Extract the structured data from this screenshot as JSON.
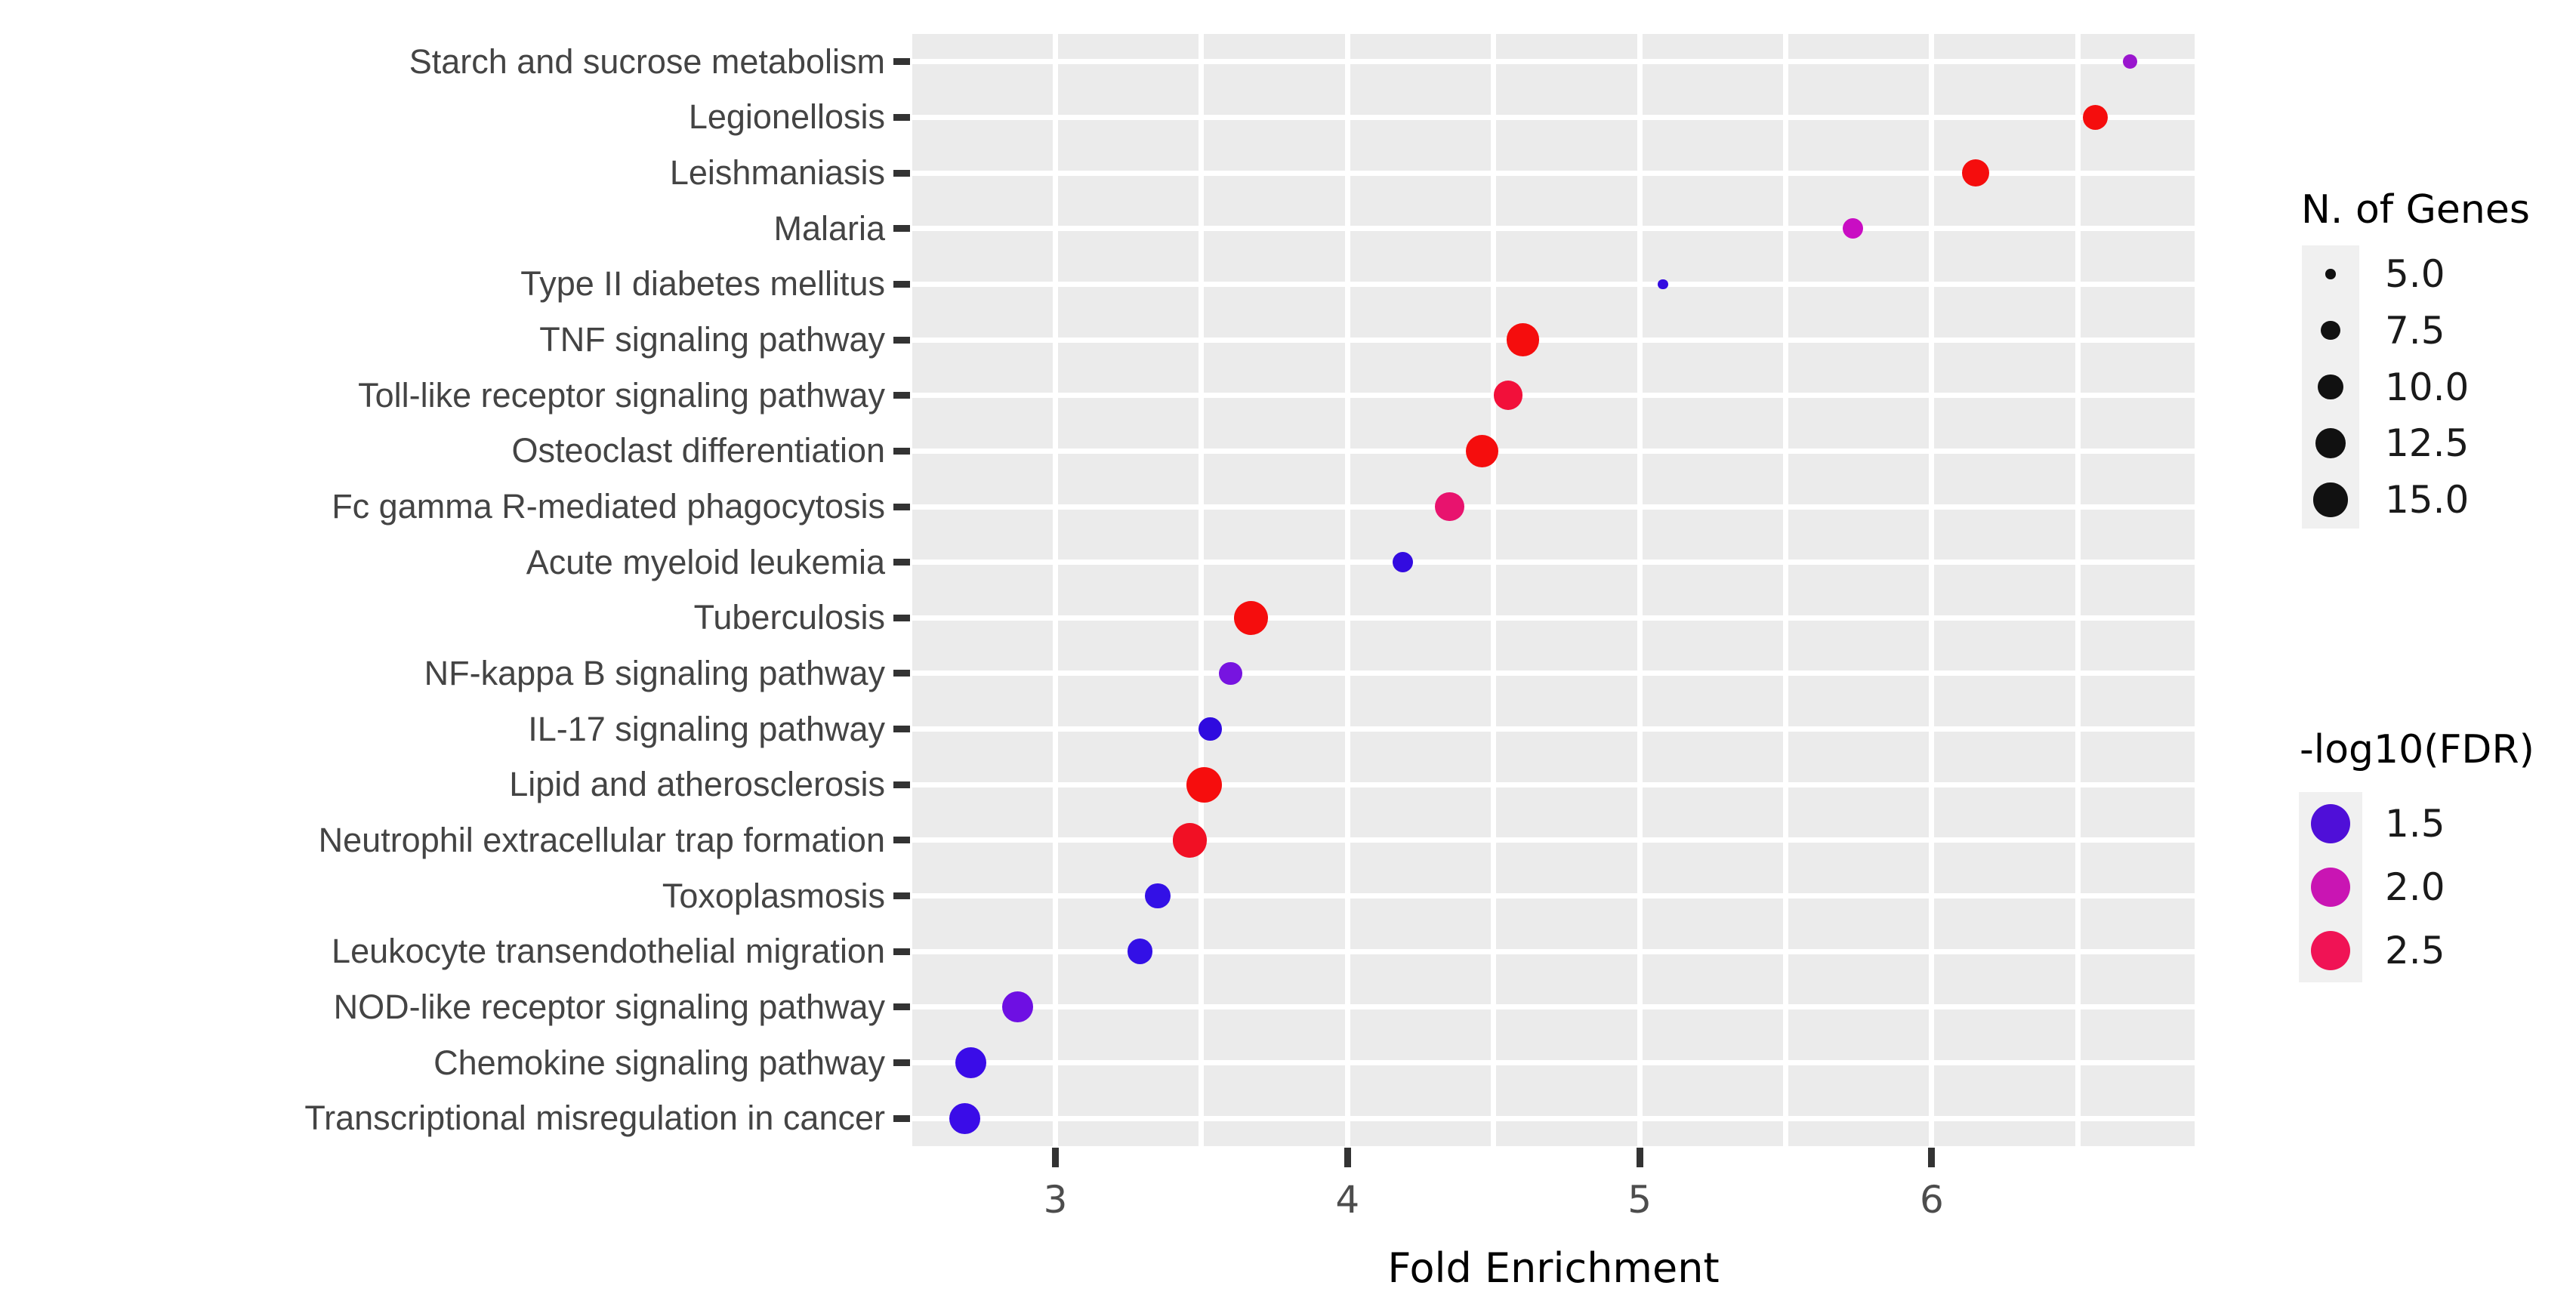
{
  "chart_data": {
    "type": "scatter",
    "title": "",
    "xlabel": "Fold Enrichment",
    "x_ticks": [
      "3",
      "4",
      "5",
      "6"
    ],
    "x_tick_values": [
      3,
      4,
      5,
      6
    ],
    "x_range": [
      2.51,
      6.9
    ],
    "grid": true,
    "panel_bg": "#EBEBEB",
    "grid_color": "#FFFFFF",
    "axis_text_color": "#4D4D4D",
    "points": [
      {
        "label": "Starch and sucrose metabolism",
        "fold_enrichment": 6.68,
        "n_genes": 6,
        "neg_log10_fdr": 1.9,
        "color": "#9A16CE"
      },
      {
        "label": "Legionellosis",
        "fold_enrichment": 6.56,
        "n_genes": 10,
        "neg_log10_fdr": 2.8,
        "color": "#F50D0D"
      },
      {
        "label": "Leishmaniasis",
        "fold_enrichment": 6.15,
        "n_genes": 11,
        "neg_log10_fdr": 2.8,
        "color": "#F50D0D"
      },
      {
        "label": "Malaria",
        "fold_enrichment": 5.73,
        "n_genes": 8,
        "neg_log10_fdr": 2.1,
        "color": "#C90DC3"
      },
      {
        "label": "Type II diabetes mellitus",
        "fold_enrichment": 5.08,
        "n_genes": 5,
        "neg_log10_fdr": 1.5,
        "color": "#330BE0"
      },
      {
        "label": "TNF signaling pathway",
        "fold_enrichment": 4.6,
        "n_genes": 14,
        "neg_log10_fdr": 2.8,
        "color": "#F50D0D"
      },
      {
        "label": "Toll-like receptor signaling pathway",
        "fold_enrichment": 4.55,
        "n_genes": 12,
        "neg_log10_fdr": 2.65,
        "color": "#F2103A"
      },
      {
        "label": "Osteoclast differentiation",
        "fold_enrichment": 4.46,
        "n_genes": 14,
        "neg_log10_fdr": 2.8,
        "color": "#F50D0D"
      },
      {
        "label": "Fc gamma R-mediated phagocytosis",
        "fold_enrichment": 4.35,
        "n_genes": 12,
        "neg_log10_fdr": 2.4,
        "color": "#E8136E"
      },
      {
        "label": "Acute myeloid leukemia",
        "fold_enrichment": 4.19,
        "n_genes": 8,
        "neg_log10_fdr": 1.5,
        "color": "#330BE0"
      },
      {
        "label": "Tuberculosis",
        "fold_enrichment": 3.67,
        "n_genes": 15,
        "neg_log10_fdr": 2.8,
        "color": "#F50D0D"
      },
      {
        "label": "NF-kappa B signaling pathway",
        "fold_enrichment": 3.6,
        "n_genes": 9,
        "neg_log10_fdr": 1.75,
        "color": "#7714E0"
      },
      {
        "label": "IL-17 signaling pathway",
        "fold_enrichment": 3.53,
        "n_genes": 9,
        "neg_log10_fdr": 1.5,
        "color": "#2F0BDF"
      },
      {
        "label": "Lipid and atherosclerosis",
        "fold_enrichment": 3.51,
        "n_genes": 16,
        "neg_log10_fdr": 2.8,
        "color": "#F60D0D"
      },
      {
        "label": "Neutrophil extracellular trap formation",
        "fold_enrichment": 3.46,
        "n_genes": 15,
        "neg_log10_fdr": 2.75,
        "color": "#F11024"
      },
      {
        "label": "Toxoplasmosis",
        "fold_enrichment": 3.35,
        "n_genes": 10,
        "neg_log10_fdr": 1.5,
        "color": "#3310E6"
      },
      {
        "label": "Leukocyte transendothelial migration",
        "fold_enrichment": 3.29,
        "n_genes": 10,
        "neg_log10_fdr": 1.5,
        "color": "#3310E6"
      },
      {
        "label": "NOD-like receptor signaling pathway",
        "fold_enrichment": 2.87,
        "n_genes": 13,
        "neg_log10_fdr": 1.7,
        "color": "#6E0FE3"
      },
      {
        "label": "Chemokine signaling pathway",
        "fold_enrichment": 2.71,
        "n_genes": 13,
        "neg_log10_fdr": 1.5,
        "color": "#3A0CE8"
      },
      {
        "label": "Transcriptional misregulation in cancer",
        "fold_enrichment": 2.69,
        "n_genes": 13,
        "neg_log10_fdr": 1.5,
        "color": "#3A0CE8"
      }
    ],
    "size_legend": {
      "title": "N. of Genes",
      "dot_color": "#111111",
      "entries": [
        {
          "label": "5.0",
          "value": 5
        },
        {
          "label": "7.5",
          "value": 7.5
        },
        {
          "label": "10.0",
          "value": 10
        },
        {
          "label": "12.5",
          "value": 12.5
        },
        {
          "label": "15.0",
          "value": 15
        }
      ]
    },
    "color_legend": {
      "title": "-log10(FDR)",
      "entries": [
        {
          "label": "1.5",
          "color": "#4F0FD8"
        },
        {
          "label": "2.0",
          "color": "#C915B3"
        },
        {
          "label": "2.5",
          "color": "#F01355"
        }
      ]
    }
  }
}
